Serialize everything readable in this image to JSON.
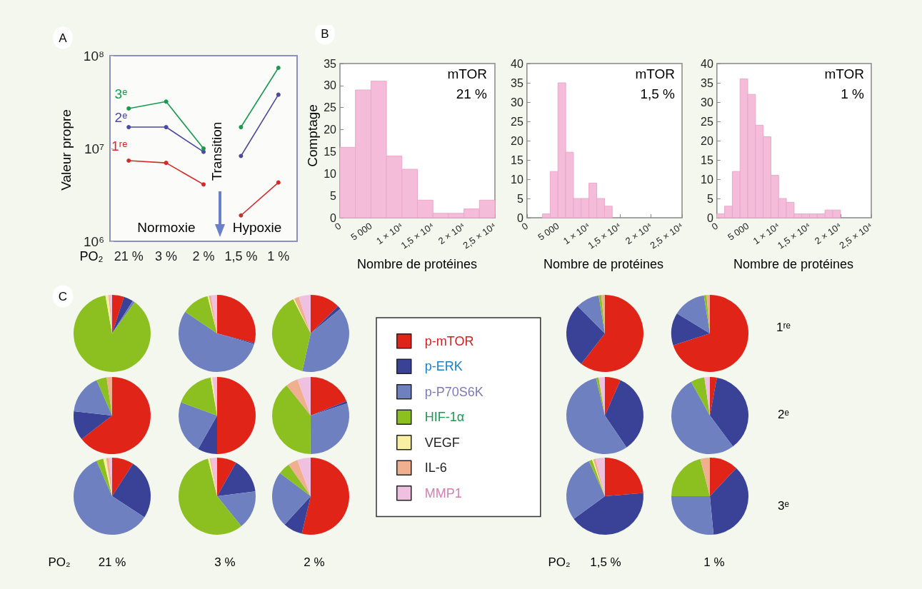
{
  "chart_data": [
    {
      "type": "line",
      "title": "A",
      "xlabel": "PO₂",
      "ylabel": "Valeur propre",
      "categories": [
        "21 %",
        "3 %",
        "2 %",
        "1,5 %",
        "1 %"
      ],
      "series": [
        {
          "name": "1ʳᵉ",
          "color": "#d42a2a",
          "values": [
            7400000,
            7000000,
            4100000,
            null,
            null
          ]
        },
        {
          "name": "2ᵉ",
          "color": "#4a4a9e",
          "values": [
            17000000,
            17000000,
            9200000,
            null,
            null
          ]
        },
        {
          "name": "3ᵉ",
          "color": "#1a9a50",
          "values": [
            27000000,
            32000000,
            10000000,
            null,
            null
          ]
        },
        {
          "color": "#d42a2a",
          "values": [
            null,
            null,
            null,
            1900000,
            4300000
          ]
        },
        {
          "color": "#4a4a9e",
          "values": [
            null,
            null,
            null,
            8300000,
            38000000
          ]
        },
        {
          "color": "#1a9a50",
          "values": [
            null,
            null,
            null,
            17000000,
            74000000
          ]
        }
      ],
      "log": "y",
      "ylim": [
        1000000,
        100000000
      ],
      "yticks": [
        {
          "value": 1000000,
          "label": "10⁶"
        },
        {
          "value": 10000000,
          "label": "10⁷"
        },
        {
          "value": 100000000,
          "label": "10⁸"
        }
      ],
      "marker": "circle",
      "line_style": "solid",
      "annotations": [
        "Normoxie",
        "Hypoxie",
        "Transition"
      ]
    },
    {
      "type": "histogram",
      "title": "B",
      "ylabel": "Comptage",
      "xlabel": "Nombre de protéines",
      "color": "#f4bcd9",
      "bins": [
        0,
        2500,
        5000,
        7500,
        10000,
        12500,
        15000,
        17500,
        20000,
        22500,
        25000
      ],
      "values": [
        16,
        29,
        31,
        14,
        11,
        4,
        1,
        1,
        2,
        4
      ],
      "xlim": [
        0,
        25000
      ],
      "xticks": [
        {
          "value": 0,
          "label": "0"
        },
        {
          "value": 5000,
          "label": "5 000"
        },
        {
          "value": 10000,
          "label": "1 × 10⁴"
        },
        {
          "value": 15000,
          "label": "1,5 × 10⁴"
        },
        {
          "value": 20000,
          "label": "2 × 10⁴"
        },
        {
          "value": 25000,
          "label": "2,5 × 10⁴"
        }
      ],
      "ylim": [
        0,
        35
      ],
      "yticks": [
        0,
        5,
        10,
        15,
        20,
        25,
        30,
        35
      ],
      "annotations": [
        "mTOR",
        "21 %"
      ]
    },
    {
      "type": "histogram",
      "xlabel": "Nombre de protéines",
      "color": "#f4bcd9",
      "bins": [
        2500,
        3750,
        5000,
        6250,
        7500,
        8750,
        10000,
        11250,
        12500,
        13750
      ],
      "values": [
        1,
        12,
        35,
        17,
        5,
        5,
        9,
        5,
        3
      ],
      "xlim": [
        0,
        25000
      ],
      "xticks": [
        {
          "value": 0,
          "label": "0"
        },
        {
          "value": 5000,
          "label": "5 000"
        },
        {
          "value": 10000,
          "label": "1 × 10⁴"
        },
        {
          "value": 15000,
          "label": "1,5 × 10⁴"
        },
        {
          "value": 20000,
          "label": "2 × 10⁴"
        },
        {
          "value": 25000,
          "label": "2,5 × 10⁴"
        }
      ],
      "ylim": [
        0,
        40
      ],
      "yticks": [
        0,
        5,
        10,
        15,
        20,
        25,
        30,
        35,
        40
      ],
      "annotations": [
        "mTOR",
        "1,5 %"
      ]
    },
    {
      "type": "histogram",
      "xlabel": "Nombre de protéines",
      "color": "#f4bcd9",
      "bins": [
        0,
        1250,
        2500,
        3750,
        5000,
        6250,
        7500,
        8750,
        10000,
        11250,
        12500,
        13750,
        15000,
        16250,
        17500,
        18750,
        20000
      ],
      "values": [
        1,
        3,
        12,
        36,
        32,
        24,
        21,
        11,
        5,
        4,
        1,
        1,
        1,
        1,
        2,
        2
      ],
      "xlim": [
        0,
        25000
      ],
      "xticks": [
        {
          "value": 0,
          "label": "0"
        },
        {
          "value": 5000,
          "label": "5 000"
        },
        {
          "value": 10000,
          "label": "1 × 10⁴"
        },
        {
          "value": 15000,
          "label": "1,5 × 10⁴"
        },
        {
          "value": 20000,
          "label": "2 × 10⁴"
        },
        {
          "value": 25000,
          "label": "2,5 × 10⁴"
        }
      ],
      "ylim": [
        0,
        40
      ],
      "yticks": [
        0,
        5,
        10,
        15,
        20,
        25,
        30,
        35,
        40
      ],
      "annotations": [
        "mTOR",
        "1 %"
      ]
    },
    {
      "type": "pie",
      "title": "C",
      "legend": "left",
      "categories": [
        "p-mTOR",
        "p-ERK",
        "p-P70S6K",
        "HIF-1α",
        "VEGF",
        "IL-6",
        "MMP1"
      ],
      "colors": [
        "#e02418",
        "#3a4298",
        "#6e80c0",
        "#8cc020",
        "#f8f0a0",
        "#f0b090",
        "#f0c0e0"
      ],
      "series": [
        {
          "values": [
            5,
            4,
            1,
            87.2,
            1.3,
            0.5,
            1
          ]
        },
        {
          "values": [
            29,
            0.5,
            55,
            11.5,
            0.5,
            1,
            2.5
          ]
        },
        {
          "values": [
            12.5,
            1.5,
            39.5,
            39,
            0.5,
            2,
            5
          ]
        },
        {
          "values": [
            60.5,
            27,
            9.9,
            1.1,
            0,
            1.5,
            0
          ]
        },
        {
          "values": [
            70,
            13.7,
            13.8,
            1.1,
            0,
            1.4,
            0
          ]
        },
        {
          "values": [
            64.5,
            12.3,
            16.6,
            4.3,
            0,
            2.3,
            0
          ]
        },
        {
          "values": [
            50,
            8.2,
            22.4,
            16.7,
            0.7,
            0,
            2
          ]
        },
        {
          "values": [
            18.9,
            1,
            30.2,
            39.2,
            0,
            5.1,
            5.6
          ]
        },
        {
          "values": [
            6.6,
            33.9,
            55.8,
            1.1,
            0,
            0,
            2.6
          ]
        },
        {
          "values": [
            2.9,
            36.9,
            52.1,
            5.8,
            0,
            0,
            2.3
          ]
        },
        {
          "values": [
            9.1,
            25.1,
            59.2,
            2.9,
            1.2,
            1.2,
            1.3
          ]
        },
        {
          "values": [
            8.2,
            14.8,
            16.2,
            57,
            0.8,
            0.5,
            2.5
          ]
        },
        {
          "values": [
            53.7,
            8.1,
            23.5,
            5,
            0,
            4.1,
            5.6
          ]
        },
        {
          "values": [
            23.7,
            41.3,
            28.2,
            1.4,
            0.5,
            1,
            3.9
          ]
        },
        {
          "values": [
            12,
            36.5,
            26.5,
            21,
            0,
            4,
            0
          ]
        }
      ],
      "annotations": [
        "PO₂",
        "21 %",
        "3 %",
        "2 %",
        "PO₂",
        "1,5 %",
        "1 %",
        "1ʳᵉ",
        "2ᵉ",
        "3ᵉ"
      ]
    }
  ]
}
